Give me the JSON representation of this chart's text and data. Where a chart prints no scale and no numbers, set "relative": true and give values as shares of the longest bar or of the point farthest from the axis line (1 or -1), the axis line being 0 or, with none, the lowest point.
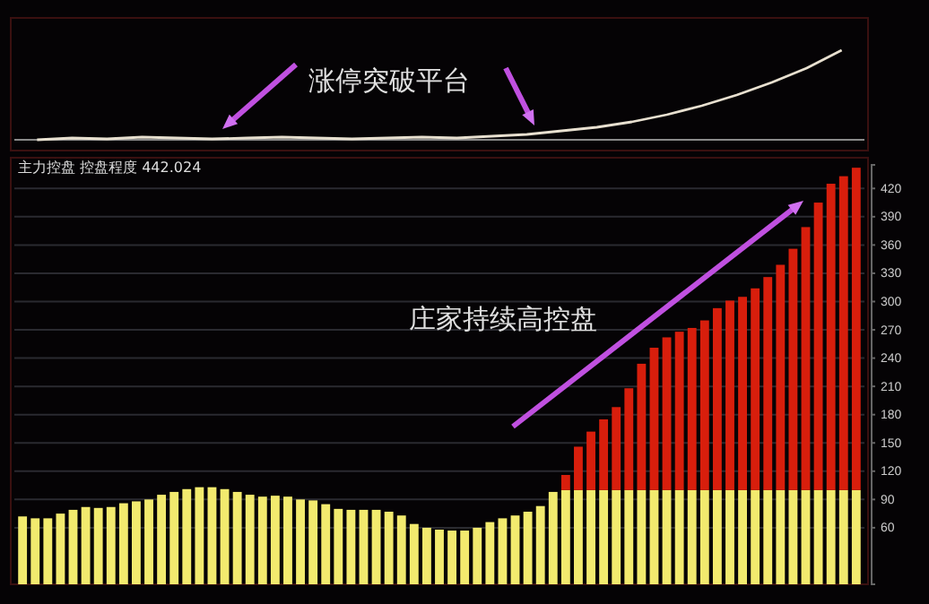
{
  "chart_data": [
    {
      "type": "line",
      "relative": true,
      "categories": [
        null,
        null,
        null,
        null,
        null,
        null,
        null,
        null,
        null,
        null,
        null,
        null,
        null,
        null,
        null,
        null,
        null,
        null,
        null,
        null,
        null,
        null,
        null,
        null
      ],
      "series": [
        {
          "color": "#e8e0d0",
          "values": [
            0,
            0.02,
            0.01,
            0.03,
            0.02,
            0.01,
            0.02,
            0.03,
            0.02,
            0.01,
            0.02,
            0.03,
            0.02,
            0.04,
            0.06,
            0.1,
            0.14,
            0.2,
            0.28,
            0.38,
            0.5,
            0.64,
            0.8,
            1
          ]
        }
      ],
      "marker": "none",
      "annotations": [
        "涨停突破平台"
      ]
    },
    {
      "type": "bar",
      "stacked": true,
      "title": "主力控盘 控盘程度 442.024",
      "categories": [
        null,
        null,
        null,
        null,
        null,
        null,
        null,
        null,
        null,
        null,
        null,
        null,
        null,
        null,
        null,
        null,
        null,
        null,
        null,
        null,
        null,
        null,
        null,
        null,
        null,
        null,
        null,
        null,
        null,
        null,
        null,
        null,
        null,
        null,
        null,
        null,
        null,
        null,
        null,
        null,
        null,
        null,
        null,
        null,
        null,
        null,
        null,
        null,
        null,
        null,
        null,
        null,
        null,
        null,
        null,
        null,
        null,
        null,
        null,
        null,
        null,
        null,
        null,
        null,
        null,
        null,
        null
      ],
      "series": [
        {
          "color": "#f2ea6e",
          "values": [
            72,
            70,
            70,
            75,
            79,
            82,
            81,
            82,
            86,
            88,
            90,
            95,
            98,
            101,
            103,
            103,
            101,
            98,
            95,
            93,
            94,
            93,
            90,
            89,
            85,
            80,
            79,
            79,
            79,
            77,
            73,
            64,
            60,
            58,
            57,
            57,
            60,
            66,
            70,
            73,
            77,
            83,
            98,
            100,
            100,
            100,
            100,
            100,
            100,
            100,
            100,
            100,
            100,
            100,
            100,
            100,
            100,
            100,
            100,
            100,
            100,
            100,
            100,
            100,
            100,
            100,
            100
          ]
        },
        {
          "color": "#d81e0c",
          "values": [
            null,
            null,
            null,
            null,
            null,
            null,
            null,
            null,
            null,
            null,
            null,
            null,
            null,
            null,
            null,
            null,
            null,
            null,
            null,
            null,
            null,
            null,
            null,
            null,
            null,
            null,
            null,
            null,
            null,
            null,
            null,
            null,
            null,
            null,
            null,
            null,
            null,
            null,
            null,
            null,
            null,
            null,
            null,
            16,
            46,
            62,
            75,
            88,
            108,
            134,
            151,
            162,
            168,
            172,
            180,
            193,
            201,
            205,
            214,
            226,
            239,
            256,
            279,
            305,
            325,
            333,
            342
          ]
        }
      ],
      "ylim": [
        0,
        445
      ],
      "yticks": [
        60,
        90,
        120,
        150,
        180,
        210,
        240,
        270,
        300,
        330,
        360,
        390,
        420
      ],
      "grid": "y",
      "annotations": [
        "庄家持续高控盘"
      ]
    }
  ]
}
